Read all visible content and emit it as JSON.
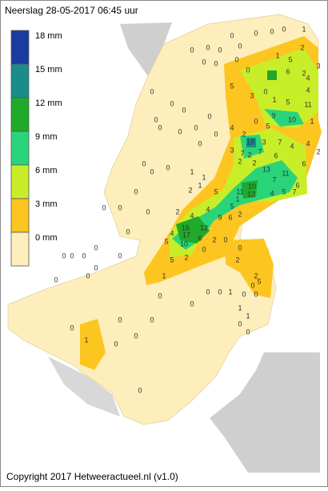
{
  "title": "Neerslag 28-05-2017  06:45 uur",
  "legend": [
    {
      "label": "18 mm",
      "color": "#1a3c9e"
    },
    {
      "label": "15 mm",
      "color": "#1a8c8c"
    },
    {
      "label": "12 mm",
      "color": "#1faa2a"
    },
    {
      "label": "9 mm",
      "color": "#2ad47a"
    },
    {
      "label": "6 mm",
      "color": "#c8ee2a"
    },
    {
      "label": "3 mm",
      "color": "#fcc520"
    },
    {
      "label": "0 mm",
      "color": "#fdeebb"
    }
  ],
  "station_values": [
    0,
    0,
    0,
    0,
    0,
    0,
    0,
    0,
    0,
    0,
    0,
    1,
    1,
    5,
    2,
    0,
    6,
    2,
    3,
    4,
    5,
    3,
    0,
    1,
    4,
    11,
    5,
    9,
    10,
    1,
    0,
    0,
    0,
    0,
    0,
    0,
    0,
    0,
    0,
    0,
    4,
    0,
    5,
    2,
    18,
    3,
    7,
    4,
    3,
    7,
    2,
    7,
    6,
    4,
    2,
    6,
    2,
    2,
    13,
    11,
    7,
    6,
    11,
    12,
    1,
    10,
    4,
    5,
    7,
    0,
    0,
    0,
    1,
    1,
    1,
    2,
    5,
    5,
    2,
    6,
    2,
    4,
    4,
    9,
    12,
    16,
    17,
    4,
    5,
    10,
    6,
    0,
    2,
    0,
    0,
    2,
    5,
    1,
    2,
    2,
    0,
    5,
    1,
    0,
    0,
    0,
    0,
    0,
    0,
    0,
    0,
    0,
    0,
    0,
    0,
    0,
    0,
    1,
    0,
    0,
    1,
    1,
    0,
    0,
    0,
    0,
    0,
    0,
    0,
    0,
    0,
    0,
    0
  ],
  "copyright": "Copyright 2017 Hetweeractueel.nl (v1.0)"
}
